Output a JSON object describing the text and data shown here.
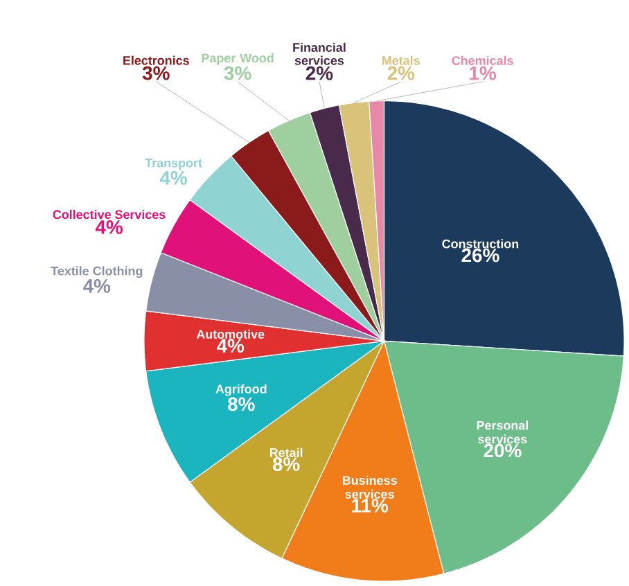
{
  "chart_data": {
    "type": "pie",
    "categories": [
      "Construction",
      "Personal services",
      "Business services",
      "Retail",
      "Agrifood",
      "Automotive",
      "Textile Clothing",
      "Collective Services",
      "Transport",
      "Electronics",
      "Paper Wood",
      "Financial services",
      "Metals",
      "Chemicals"
    ],
    "values": [
      26,
      20,
      11,
      8,
      8,
      4,
      4,
      4,
      4,
      3,
      3,
      2,
      2,
      1
    ],
    "value_labels": [
      "26%",
      "20%",
      "11%",
      "8%",
      "8%",
      "4%",
      "4%",
      "4%",
      "4%",
      "3%",
      "3%",
      "2%",
      "2%",
      "1%"
    ],
    "colors": [
      "#1b3a5c",
      "#6dbd8a",
      "#f07d1a",
      "#c4a62e",
      "#1ab5bf",
      "#e03030",
      "#8a8fa8",
      "#e0127a",
      "#8fd3d3",
      "#8b1a1a",
      "#9fcf9f",
      "#4a2a4a",
      "#d9c27a",
      "#e888a8"
    ],
    "legend": false
  }
}
